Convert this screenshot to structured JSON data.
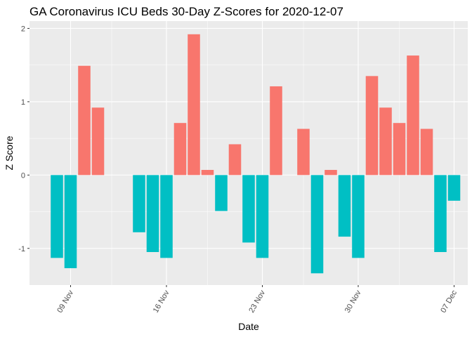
{
  "chart_data": {
    "type": "bar",
    "title": "GA Coronavirus ICU Beds 30-Day Z-Scores for 2020-12-07",
    "xlabel": "Date",
    "ylabel": "Z Score",
    "x_range": [
      "2020-11-06",
      "2020-12-08"
    ],
    "ylim": [
      -1.5,
      2.1
    ],
    "x_ticks": [
      {
        "date": "2020-11-09",
        "label": "09 Nov"
      },
      {
        "date": "2020-11-16",
        "label": "16 Nov"
      },
      {
        "date": "2020-11-23",
        "label": "23 Nov"
      },
      {
        "date": "2020-11-30",
        "label": "30 Nov"
      },
      {
        "date": "2020-12-07",
        "label": "07 Dec"
      }
    ],
    "y_ticks": [
      -1,
      0,
      1,
      2
    ],
    "grid": true,
    "legend": "none",
    "colors": {
      "positive": "#F8766D",
      "negative": "#00BFC4",
      "panel": "#EBEBEB",
      "grid": "#FFFFFF"
    },
    "bars": [
      {
        "date": "2020-11-08",
        "value": -1.13
      },
      {
        "date": "2020-11-09",
        "value": -1.27
      },
      {
        "date": "2020-11-10",
        "value": 1.49
      },
      {
        "date": "2020-11-11",
        "value": 0.92
      },
      {
        "date": "2020-11-14",
        "value": -0.78
      },
      {
        "date": "2020-11-15",
        "value": -1.05
      },
      {
        "date": "2020-11-16",
        "value": -1.13
      },
      {
        "date": "2020-11-17",
        "value": 0.71
      },
      {
        "date": "2020-11-18",
        "value": 1.92
      },
      {
        "date": "2020-11-19",
        "value": 0.07
      },
      {
        "date": "2020-11-20",
        "value": -0.49
      },
      {
        "date": "2020-11-21",
        "value": 0.42
      },
      {
        "date": "2020-11-22",
        "value": -0.92
      },
      {
        "date": "2020-11-23",
        "value": -1.13
      },
      {
        "date": "2020-11-24",
        "value": 1.21
      },
      {
        "date": "2020-11-26",
        "value": 0.63
      },
      {
        "date": "2020-11-27",
        "value": -1.34
      },
      {
        "date": "2020-11-28",
        "value": 0.07
      },
      {
        "date": "2020-11-29",
        "value": -0.84
      },
      {
        "date": "2020-11-30",
        "value": -1.13
      },
      {
        "date": "2020-12-01",
        "value": 1.35
      },
      {
        "date": "2020-12-02",
        "value": 0.92
      },
      {
        "date": "2020-12-03",
        "value": 0.71
      },
      {
        "date": "2020-12-04",
        "value": 1.63
      },
      {
        "date": "2020-12-05",
        "value": 0.63
      },
      {
        "date": "2020-12-06",
        "value": -1.05
      },
      {
        "date": "2020-12-07",
        "value": -0.35
      }
    ]
  }
}
